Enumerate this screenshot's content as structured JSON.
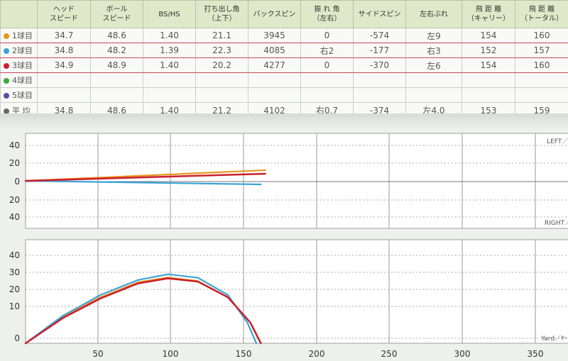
{
  "table": {
    "headers": [
      "",
      "ヘッド\nスピード",
      "ボール\nスピード",
      "BS/HS",
      "打ち出し角\n（上下）",
      "バックスピン",
      "振 れ 角\n（左右）",
      "サイドスピン",
      "左右ぶれ",
      "飛 距 離\n（キャリー）",
      "飛 距 離\n（トータル）"
    ],
    "rows": [
      {
        "label": "1球目",
        "color": "#e8951f",
        "cells": [
          "34.7",
          "48.6",
          "1.40",
          "21.1",
          "3945",
          "0",
          "-574",
          "左9",
          "154",
          "160"
        ]
      },
      {
        "label": "2球目",
        "color": "#3aa4d8",
        "cells": [
          "34.8",
          "48.2",
          "1.39",
          "22.3",
          "4085",
          "右2",
          "-177",
          "右3",
          "152",
          "157"
        ]
      },
      {
        "label": "3球目",
        "color": "#c9202d",
        "cells": [
          "34.9",
          "48.9",
          "1.40",
          "20.2",
          "4277",
          "0",
          "-370",
          "左6",
          "154",
          "160"
        ]
      },
      {
        "label": "4球目",
        "color": "#3aaa3a",
        "cells": [
          "",
          "",
          "",
          "",
          "",
          "",
          "",
          "",
          "",
          ""
        ]
      },
      {
        "label": "5球目",
        "color": "#5b4aa8",
        "cells": [
          "",
          "",
          "",
          "",
          "",
          "",
          "",
          "",
          "",
          ""
        ]
      }
    ],
    "average": {
      "label": "平 均",
      "color": "#666666",
      "cells": [
        "34.8",
        "48.6",
        "1.40",
        "21.2",
        "4102",
        "右0.7",
        "-374",
        "左4.0",
        "153",
        "159"
      ]
    }
  },
  "chart_data": [
    {
      "type": "line",
      "title": "",
      "corner_labels": {
        "top": "LEFT／",
        "bottom": "RIGHT／"
      },
      "yticks": [
        "40",
        "20",
        "0",
        "20",
        "40"
      ],
      "xlim": [
        0,
        380
      ],
      "ylim": [
        -40,
        40
      ],
      "series": [
        {
          "color": "#e8951f",
          "x": [
            0,
            160
          ],
          "y": [
            0,
            9
          ]
        },
        {
          "color": "#3aa4d8",
          "x": [
            0,
            157
          ],
          "y": [
            0,
            -3
          ]
        },
        {
          "color": "#c9202d",
          "x": [
            0,
            160
          ],
          "y": [
            0,
            6
          ]
        }
      ]
    },
    {
      "type": "line",
      "title": "",
      "corner_label": "Yard／ﾔｰ",
      "yticks": [
        "40",
        "30",
        "20",
        "10",
        "0"
      ],
      "xticks": [
        "50",
        "100",
        "150",
        "200",
        "250",
        "300",
        "350"
      ],
      "xlim": [
        0,
        380
      ],
      "ylim": [
        0,
        45
      ],
      "series": [
        {
          "color": "#e8951f",
          "x": [
            0,
            25,
            50,
            75,
            95,
            115,
            135,
            150,
            157
          ],
          "y": [
            0,
            11.5,
            20,
            26.5,
            28.6,
            27,
            20,
            9,
            0
          ]
        },
        {
          "color": "#3aa4d8",
          "x": [
            0,
            25,
            50,
            75,
            95,
            115,
            135,
            148,
            154
          ],
          "y": [
            0,
            12,
            21,
            27.5,
            30,
            28.5,
            21,
            9,
            0
          ]
        },
        {
          "color": "#c9202d",
          "x": [
            0,
            25,
            50,
            75,
            95,
            115,
            135,
            150,
            157
          ],
          "y": [
            0,
            11,
            19.5,
            26,
            28.2,
            26.8,
            20,
            9,
            0
          ]
        }
      ]
    }
  ]
}
